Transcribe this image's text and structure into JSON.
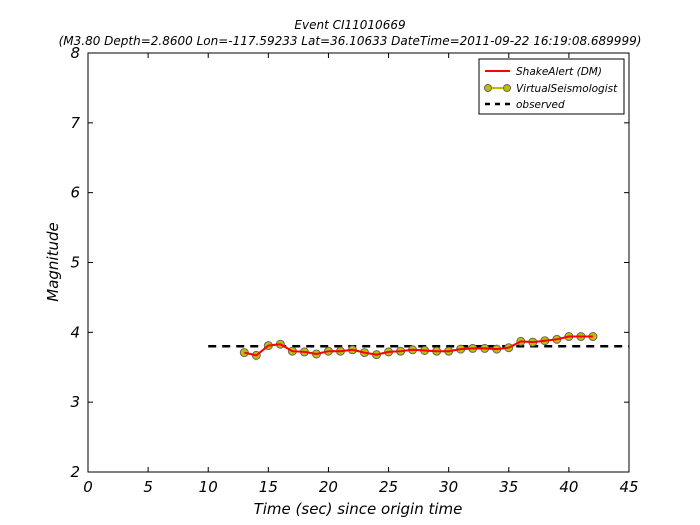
{
  "chart_data": {
    "type": "line",
    "title": "Event CI11010669",
    "subtitle": "(M3.80 Depth=2.8600 Lon=-117.59233 Lat=36.10633 DateTime=2011-09-22 16:19:08.689999)",
    "xlabel": "Time (sec) since origin time",
    "ylabel": "Magnitude",
    "xlim": [
      0,
      45
    ],
    "ylim": [
      2,
      8
    ],
    "xticks": [
      "0",
      "5",
      "10",
      "15",
      "20",
      "25",
      "30",
      "35",
      "40",
      "45"
    ],
    "yticks": [
      "2",
      "3",
      "4",
      "5",
      "6",
      "7",
      "8"
    ],
    "grid": false,
    "legend_position": "top-right",
    "x": [
      13,
      14,
      15,
      16,
      17,
      18,
      19,
      20,
      21,
      22,
      23,
      24,
      25,
      26,
      27,
      28,
      29,
      30,
      31,
      32,
      33,
      34,
      35,
      36,
      37,
      38,
      39,
      40,
      41,
      42
    ],
    "series": [
      {
        "name": "ShakeAlert (DM)",
        "color": "#ff0000",
        "style": "line",
        "values": [
          3.71,
          3.67,
          3.81,
          3.83,
          3.73,
          3.72,
          3.69,
          3.73,
          3.73,
          3.75,
          3.71,
          3.68,
          3.72,
          3.73,
          3.75,
          3.74,
          3.73,
          3.73,
          3.76,
          3.77,
          3.77,
          3.76,
          3.78,
          3.87,
          3.86,
          3.88,
          3.9,
          3.94,
          3.94,
          3.94
        ]
      },
      {
        "name": "VirtualSeismologist",
        "color": "#bfbf00",
        "style": "line-marker",
        "values": [
          3.71,
          3.67,
          3.81,
          3.83,
          3.73,
          3.72,
          3.69,
          3.73,
          3.73,
          3.75,
          3.71,
          3.68,
          3.72,
          3.73,
          3.75,
          3.74,
          3.73,
          3.73,
          3.76,
          3.77,
          3.77,
          3.76,
          3.78,
          3.87,
          3.86,
          3.88,
          3.9,
          3.94,
          3.94,
          3.94
        ]
      },
      {
        "name": "observed",
        "color": "#000000",
        "style": "dashed",
        "x": [
          10,
          45
        ],
        "values": [
          3.8,
          3.8
        ]
      }
    ]
  }
}
